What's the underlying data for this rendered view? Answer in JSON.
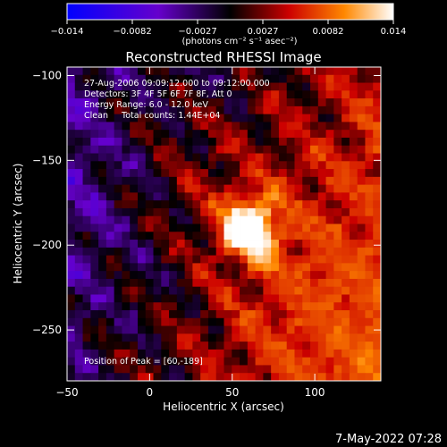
{
  "chart_data": {
    "type": "heatmap",
    "title": "Reconstructed RHESSI Image",
    "xlabel": "Heliocentric X (arcsec)",
    "ylabel": "Heliocentric Y (arcsec)",
    "xlim": [
      -50,
      140
    ],
    "ylim": [
      -280,
      -95
    ],
    "x_ticks": [
      -50,
      0,
      50,
      100
    ],
    "y_ticks": [
      -100,
      -150,
      -200,
      -250
    ],
    "grid": false,
    "annotations": [
      "27-Aug-2006 09:09:12.000 to 09:12:00.000",
      "Detectors: 3F 4F 5F 6F 7F 8F, Att 0",
      "Energy Range: 6.0 - 12.0 keV",
      "Clean     Total counts: 1.44E+04"
    ],
    "peak_label": "Position of Peak = [60,-189]",
    "peak": [
      60,
      -189
    ],
    "colorbar": {
      "ticks": [
        "-0.014",
        "-0.0082",
        "-0.0027",
        "0.0027",
        "0.0082",
        "0.014"
      ],
      "unit_label": "(photons cm⁻² s⁻¹ asec⁻²)",
      "range": [
        -0.014,
        0.014
      ]
    },
    "timestamp": "7-May-2022 07:28"
  }
}
